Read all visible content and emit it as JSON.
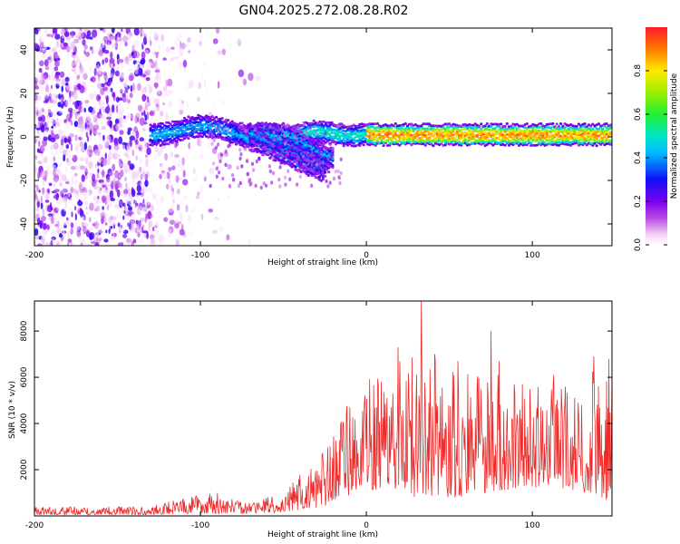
{
  "title": "GN04.2025.272.08.28.R02",
  "chart_data": [
    {
      "type": "heatmap",
      "title": "GN04.2025.272.08.28.R02",
      "xlabel": "Height of straight line (km)",
      "ylabel": "Frequency (Hz)",
      "xlim": [
        -200,
        148
      ],
      "ylim": [
        -50,
        50
      ],
      "xticks": [
        -200,
        -100,
        0,
        100
      ],
      "xtick_labels": [
        "-200",
        "-100",
        "0",
        "100"
      ],
      "yticks": [
        -40,
        -20,
        0,
        20,
        40
      ],
      "ytick_labels": [
        "-40",
        "-20",
        "0",
        "20",
        "40"
      ],
      "colorbar": {
        "label": "Normalized spectral amplitude",
        "range": [
          0.0,
          1.0
        ],
        "ticks": [
          0.0,
          0.2,
          0.4,
          0.6,
          0.8
        ],
        "tick_labels": [
          "0.0",
          "0.2",
          "0.4",
          "0.6",
          "0.8"
        ],
        "colormap": "rainbow (magenta-blue-cyan-green-yellow-red)"
      },
      "features": {
        "noise_region_x": [
          -200,
          -130
        ],
        "main_line_freq_hz": 1,
        "strong_line_x": [
          0,
          148
        ],
        "branch_start_x": -80,
        "branch_end_x": -20,
        "branch_end_freq_hz": -18
      }
    },
    {
      "type": "line",
      "xlabel": "Height of straight line (km)",
      "ylabel": "SNR (10 * v/v)",
      "xlim": [
        -200,
        148
      ],
      "ylim": [
        0,
        9300
      ],
      "xticks": [
        -200,
        -100,
        0,
        100
      ],
      "xtick_labels": [
        "-200",
        "-100",
        "0",
        "100"
      ],
      "yticks": [
        2000,
        4000,
        6000,
        8000
      ],
      "ytick_labels": [
        "2000",
        "4000",
        "6000",
        "8000"
      ],
      "color": "#ee2b2b",
      "envelope": [
        {
          "x": -200,
          "low": 50,
          "high": 400
        },
        {
          "x": -130,
          "low": 50,
          "high": 400
        },
        {
          "x": -110,
          "low": 100,
          "high": 900
        },
        {
          "x": -90,
          "low": 100,
          "high": 1000
        },
        {
          "x": -70,
          "low": 80,
          "high": 600
        },
        {
          "x": -55,
          "low": 150,
          "high": 1000
        },
        {
          "x": -40,
          "low": 250,
          "high": 1800
        },
        {
          "x": -25,
          "low": 400,
          "high": 3000
        },
        {
          "x": -15,
          "low": 800,
          "high": 4500
        },
        {
          "x": -5,
          "low": 1000,
          "high": 5500
        },
        {
          "x": 10,
          "low": 1200,
          "high": 6500
        },
        {
          "x": 30,
          "low": 800,
          "high": 7000
        },
        {
          "x": 60,
          "low": 800,
          "high": 6500
        },
        {
          "x": 90,
          "low": 1200,
          "high": 6000
        },
        {
          "x": 120,
          "low": 1200,
          "high": 6000
        },
        {
          "x": 148,
          "low": 600,
          "high": 6500
        }
      ],
      "peaks": [
        {
          "x": 33,
          "y": 9300
        },
        {
          "x": 19,
          "y": 7300
        },
        {
          "x": 75,
          "y": 8000
        },
        {
          "x": 41,
          "y": 7000
        },
        {
          "x": 55,
          "y": 6700
        },
        {
          "x": 80,
          "y": 6700
        },
        {
          "x": 137,
          "y": 6900
        },
        {
          "x": 146,
          "y": 6800
        },
        {
          "x": 113,
          "y": 6100
        },
        {
          "x": -10,
          "y": 4700
        },
        {
          "x": -1,
          "y": 5200
        },
        {
          "x": 9,
          "y": 5800
        }
      ]
    }
  ]
}
